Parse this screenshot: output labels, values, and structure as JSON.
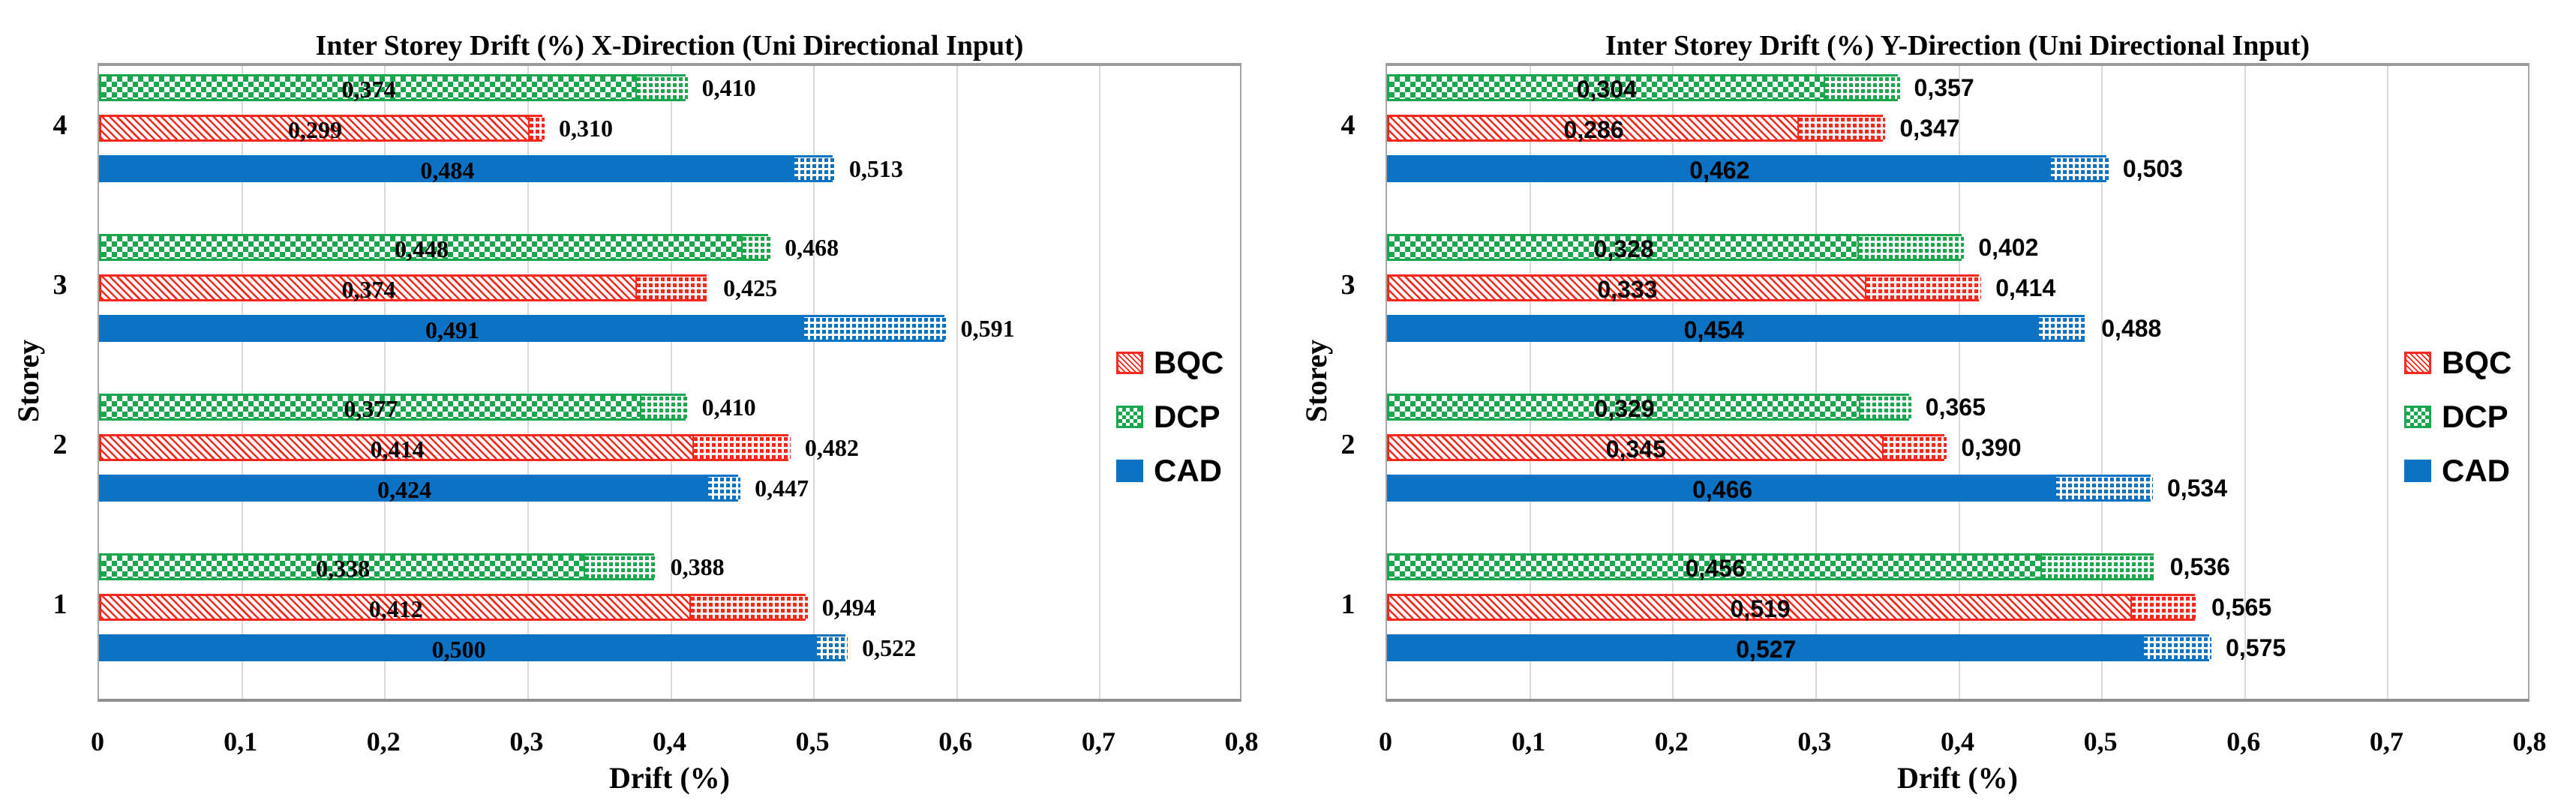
{
  "colors": {
    "bqc": "#f8281c",
    "dcp": "#1aa64d",
    "cad": "#0c72c4",
    "grid": "#d9d9d9",
    "plot_border": "#a6a6a6",
    "text": "#000000"
  },
  "chart_data": [
    {
      "type": "bar",
      "orientation": "horizontal",
      "title": "Inter Storey Drift (%) X-Direction (Uni Directional Input)",
      "xlabel": "Drift (%)",
      "ylabel": "Storey",
      "xlim": [
        0,
        0.8
      ],
      "x_ticks": [
        "0",
        "0,1",
        "0,2",
        "0,3",
        "0,4",
        "0,5",
        "0,6",
        "0,7",
        "0,8"
      ],
      "categories": [
        "4",
        "3",
        "2",
        "1"
      ],
      "bar_order_top_to_bottom": [
        "DCP",
        "BQC",
        "CAD"
      ],
      "grid": "vertical",
      "legend": [
        "BQC",
        "DCP",
        "CAD"
      ],
      "legend_position": "inside-right",
      "series": [
        {
          "name": "BQC",
          "solid_values": [
            0.299,
            0.374,
            0.414,
            0.412
          ],
          "total_values": [
            0.31,
            0.425,
            0.482,
            0.494
          ],
          "solid_labels": [
            "0,299",
            "0,374",
            "0,414",
            "0,412"
          ],
          "total_labels": [
            "0,310",
            "0,425",
            "0,482",
            "0,494"
          ]
        },
        {
          "name": "DCP",
          "solid_values": [
            0.374,
            0.448,
            0.377,
            0.338
          ],
          "total_values": [
            0.41,
            0.468,
            0.41,
            0.388
          ],
          "solid_labels": [
            "0,374",
            "0,448",
            "0,377",
            "0,338"
          ],
          "total_labels": [
            "0,410",
            "0,468",
            "0,410",
            "0,388"
          ]
        },
        {
          "name": "CAD",
          "solid_values": [
            0.484,
            0.491,
            0.424,
            0.5
          ],
          "total_values": [
            0.513,
            0.591,
            0.447,
            0.522
          ],
          "solid_labels": [
            "0,484",
            "0,491",
            "0,424",
            "0,500"
          ],
          "total_labels": [
            "0,513",
            "0,591",
            "0,447",
            "0,522"
          ]
        }
      ]
    },
    {
      "type": "bar",
      "orientation": "horizontal",
      "title": "Inter Storey Drift (%) Y-Direction (Uni Directional Input)",
      "xlabel": "Drift (%)",
      "ylabel": "Storey",
      "xlim": [
        0,
        0.8
      ],
      "x_ticks": [
        "0",
        "0,1",
        "0,2",
        "0,3",
        "0,4",
        "0,5",
        "0,6",
        "0,7",
        "0,8"
      ],
      "categories": [
        "4",
        "3",
        "2",
        "1"
      ],
      "bar_order_top_to_bottom": [
        "DCP",
        "BQC",
        "CAD"
      ],
      "grid": "vertical",
      "legend": [
        "BQC",
        "DCP",
        "CAD"
      ],
      "legend_position": "inside-right",
      "series": [
        {
          "name": "BQC",
          "solid_values": [
            0.286,
            0.333,
            0.345,
            0.519
          ],
          "total_values": [
            0.347,
            0.414,
            0.39,
            0.565
          ],
          "solid_labels": [
            "0,286",
            "0,333",
            "0,345",
            "0,519"
          ],
          "total_labels": [
            "0,347",
            "0,414",
            "0,390",
            "0,565"
          ]
        },
        {
          "name": "DCP",
          "solid_values": [
            0.304,
            0.328,
            0.329,
            0.456
          ],
          "total_values": [
            0.357,
            0.402,
            0.365,
            0.536
          ],
          "solid_labels": [
            "0,304",
            "0,328",
            "0,329",
            "0,456"
          ],
          "total_labels": [
            "0,357",
            "0,402",
            "0,365",
            "0,536"
          ]
        },
        {
          "name": "CAD",
          "solid_values": [
            0.462,
            0.454,
            0.466,
            0.527
          ],
          "total_values": [
            0.503,
            0.488,
            0.534,
            0.575
          ],
          "solid_labels": [
            "0,462",
            "0,454",
            "0,466",
            "0,527"
          ],
          "total_labels": [
            "0,503",
            "0,488",
            "0,534",
            "0,575"
          ]
        }
      ]
    }
  ]
}
